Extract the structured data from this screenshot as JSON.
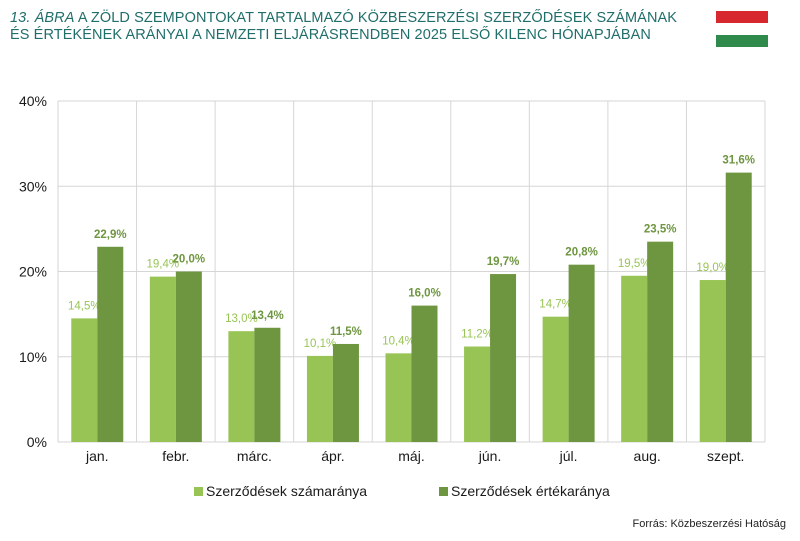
{
  "figure": {
    "label": "13. ábra",
    "title": "A zöld szempontokat tartalmazó közbeszerzési szerződések számának és értékének arányai a nemzeti eljárásrendben 2025 első kilenc hónapjában",
    "source": "Forrás: Közbeszerzési Hatóság"
  },
  "flag": {
    "colors": [
      "#d7282f",
      "#ffffff",
      "#2f8a4c"
    ]
  },
  "chart_data": {
    "type": "bar",
    "categories": [
      "jan.",
      "febr.",
      "márc.",
      "ápr.",
      "máj.",
      "jún.",
      "júl.",
      "aug.",
      "szept."
    ],
    "series": [
      {
        "name": "Szerződések számaránya",
        "color": "#98c455",
        "values": [
          14.5,
          19.4,
          13.0,
          10.1,
          10.4,
          11.2,
          14.7,
          19.5,
          19.0
        ],
        "labels": [
          "14,5%",
          "19,4%",
          "13,0%",
          "10,1%",
          "10,4%",
          "11,2%",
          "14,7%",
          "19,5%",
          "19,0%"
        ]
      },
      {
        "name": "Szerződések értékaránya",
        "color": "#6e9540",
        "values": [
          22.9,
          20.0,
          13.4,
          11.5,
          16.0,
          19.7,
          20.8,
          23.5,
          31.6
        ],
        "labels": [
          "22,9%",
          "20,0%",
          "13,4%",
          "11,5%",
          "16,0%",
          "19,7%",
          "20,8%",
          "23,5%",
          "31,6%"
        ]
      }
    ],
    "ylim": [
      0,
      40
    ],
    "yticks": [
      0,
      10,
      20,
      30,
      40
    ],
    "ytick_labels": [
      "0%",
      "10%",
      "20%",
      "30%",
      "40%"
    ],
    "grid": true,
    "legend": "bottom"
  }
}
